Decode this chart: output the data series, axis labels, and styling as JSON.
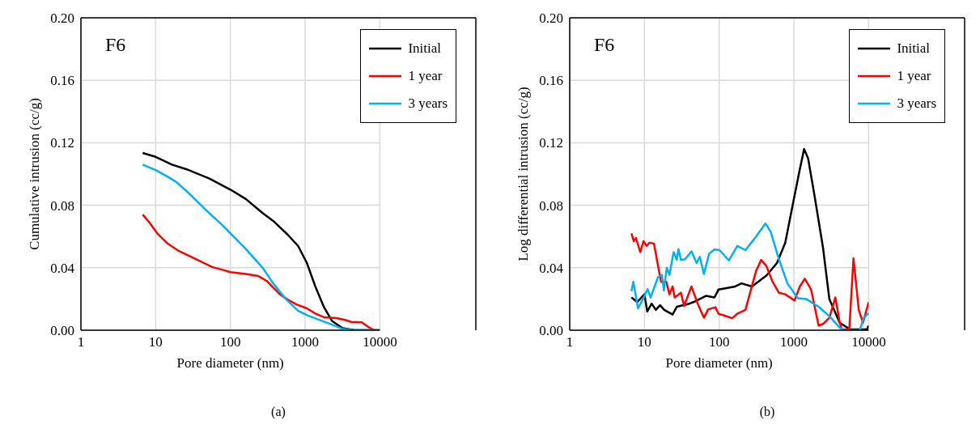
{
  "chart_data": [
    {
      "type": "line",
      "xlabel": "Pore diameter (nm)",
      "ylabel": "Cumulative intrusion (cc/g)",
      "annotations": [
        "F6",
        "(a)"
      ],
      "log": "x",
      "grid": true,
      "legend": "top right",
      "marker": "none",
      "line_style": "solid",
      "xlim": [
        1,
        10000
      ],
      "xticks": [
        1,
        10,
        100,
        1000,
        10000
      ],
      "ylim": [
        0,
        0.2
      ],
      "yticks": [
        {
          "value": 0,
          "label": "0.00"
        },
        {
          "value": 0.04,
          "label": "0.04"
        },
        {
          "value": 0.08,
          "label": "0.08"
        },
        {
          "value": 0.12,
          "label": "0.12"
        },
        {
          "value": 0.16,
          "label": "0.16"
        },
        {
          "value": 0.2,
          "label": "0.20"
        }
      ],
      "series": [
        {
          "name": "Initial",
          "color": "#000000",
          "x": [
            6.7,
            10,
            16.5,
            26,
            53,
            100,
            161,
            270,
            374,
            589,
            804,
            1057,
            1370,
            1778,
            2303,
            3190,
            4710,
            10000
          ],
          "values": [
            0.1135,
            0.111,
            0.106,
            0.103,
            0.097,
            0.09,
            0.084,
            0.075,
            0.07,
            0.061,
            0.054,
            0.043,
            0.028,
            0.015,
            0.0058,
            0.0013,
            0,
            0
          ]
        },
        {
          "name": "1 year",
          "color": "#ff0000",
          "x": [
            6.7,
            8.1,
            10.5,
            14.5,
            20,
            29.6,
            57,
            84,
            100,
            161,
            236,
            309,
            456,
            589,
            765,
            1057,
            1370,
            1778,
            2630,
            3400,
            4160,
            5740,
            7200,
            8500,
            10000
          ],
          "values": [
            0.074,
            0.0694,
            0.062,
            0.0554,
            0.051,
            0.0471,
            0.0405,
            0.0383,
            0.0372,
            0.036,
            0.0347,
            0.0314,
            0.0231,
            0.0195,
            0.0165,
            0.014,
            0.0107,
            0.0083,
            0.0078,
            0.0066,
            0.0053,
            0.005,
            0.0017,
            0,
            0
          ]
        },
        {
          "name": "3 years",
          "color": "#00b0f0",
          "x": [
            6.7,
            10,
            13.6,
            18.8,
            26,
            47,
            79,
            100,
            161,
            270,
            374,
            550,
            810,
            1120,
            2150,
            3190,
            4160,
            10000
          ],
          "values": [
            0.106,
            0.1025,
            0.099,
            0.095,
            0.089,
            0.077,
            0.067,
            0.062,
            0.052,
            0.04,
            0.03,
            0.02,
            0.0124,
            0.0091,
            0.0041,
            0.0008,
            0.0003,
            0
          ]
        }
      ]
    },
    {
      "type": "line",
      "xlabel": "Pore diameter (nm)",
      "ylabel": "Log differential intrusion (cc/g)",
      "annotations": [
        "F6",
        "(b)"
      ],
      "log": "x",
      "grid": true,
      "legend": "top right",
      "marker": "none",
      "line_style": "solid",
      "xlim": [
        1,
        10000
      ],
      "xticks": [
        1,
        10,
        100,
        1000,
        10000
      ],
      "ylim": [
        0,
        0.2
      ],
      "yticks": [
        {
          "value": 0,
          "label": "0.00"
        },
        {
          "value": 0.04,
          "label": "0.04"
        },
        {
          "value": 0.08,
          "label": "0.08"
        },
        {
          "value": 0.12,
          "label": "0.12"
        },
        {
          "value": 0.16,
          "label": "0.16"
        },
        {
          "value": 0.2,
          "label": "0.20"
        }
      ],
      "series": [
        {
          "name": "Initial",
          "color": "#000000",
          "x": [
            6.7,
            8,
            10,
            10.9,
            12.5,
            14.2,
            16.2,
            18.4,
            23.8,
            27.1,
            39.9,
            45.3,
            66.6,
            86.5,
            98,
            164,
            199,
            274,
            429,
            593,
            766,
            990,
            1200,
            1370,
            1550,
            1890,
            2450,
            2980,
            4110,
            5670,
            9520,
            10000
          ],
          "values": [
            0.021,
            0.018,
            0.023,
            0.012,
            0.017,
            0.013,
            0.016,
            0.013,
            0.01,
            0.015,
            0.017,
            0.018,
            0.022,
            0.021,
            0.026,
            0.028,
            0.03,
            0.028,
            0.035,
            0.043,
            0.056,
            0.083,
            0.103,
            0.116,
            0.11,
            0.086,
            0.053,
            0.02,
            0.0047,
            0.0005,
            0.0005,
            0.003
          ]
        },
        {
          "name": "1 year",
          "color": "#ff0000",
          "x": [
            6.7,
            7.2,
            7.7,
            8.8,
            9.7,
            10.7,
            11.7,
            13.4,
            14.7,
            16.7,
            19.6,
            21.6,
            23.8,
            25.4,
            30.8,
            33.9,
            42.6,
            51.6,
            62.5,
            71.2,
            89,
            98,
            119,
            149,
            175,
            225,
            256,
            312,
            365,
            429,
            519,
            629,
            766,
            1020,
            1200,
            1400,
            1700,
            2140,
            2450,
            2980,
            3590,
            4110,
            4380,
            5510,
            6270,
            7380,
            8410,
            10000
          ],
          "values": [
            0.062,
            0.057,
            0.059,
            0.05,
            0.057,
            0.054,
            0.056,
            0.0555,
            0.045,
            0.031,
            0.031,
            0.023,
            0.028,
            0.021,
            0.024,
            0.0155,
            0.028,
            0.017,
            0.008,
            0.0133,
            0.0147,
            0.0105,
            0.0093,
            0.0077,
            0.0105,
            0.013,
            0.023,
            0.038,
            0.045,
            0.041,
            0.031,
            0.024,
            0.023,
            0.019,
            0.028,
            0.033,
            0.026,
            0.003,
            0.004,
            0.008,
            0.021,
            0.0047,
            0.0005,
            0.0005,
            0.046,
            0.013,
            0.0047,
            0.018
          ]
        },
        {
          "name": "3 years",
          "color": "#00b0f0",
          "x": [
            6.7,
            7.1,
            8.2,
            9.7,
            11,
            12.1,
            15.2,
            17.1,
            18.2,
            19.9,
            21.6,
            24.6,
            27.1,
            28.5,
            30.8,
            35,
            42.6,
            49.9,
            55,
            62.5,
            73.4,
            86.5,
            101,
            135,
            175,
            225,
            312,
            416,
            489,
            629,
            818,
            1130,
            1460,
            2140,
            2980,
            4110,
            4530,
            7600,
            8650,
            10000
          ],
          "values": [
            0.025,
            0.031,
            0.014,
            0.0205,
            0.0263,
            0.021,
            0.034,
            0.0355,
            0.0255,
            0.04,
            0.0355,
            0.05,
            0.045,
            0.052,
            0.045,
            0.0455,
            0.0505,
            0.043,
            0.047,
            0.036,
            0.049,
            0.0517,
            0.0513,
            0.0447,
            0.054,
            0.0513,
            0.06,
            0.0683,
            0.063,
            0.0455,
            0.03,
            0.0205,
            0.02,
            0.015,
            0.009,
            0.0017,
            0,
            0,
            0.008,
            0.011
          ]
        }
      ]
    }
  ]
}
